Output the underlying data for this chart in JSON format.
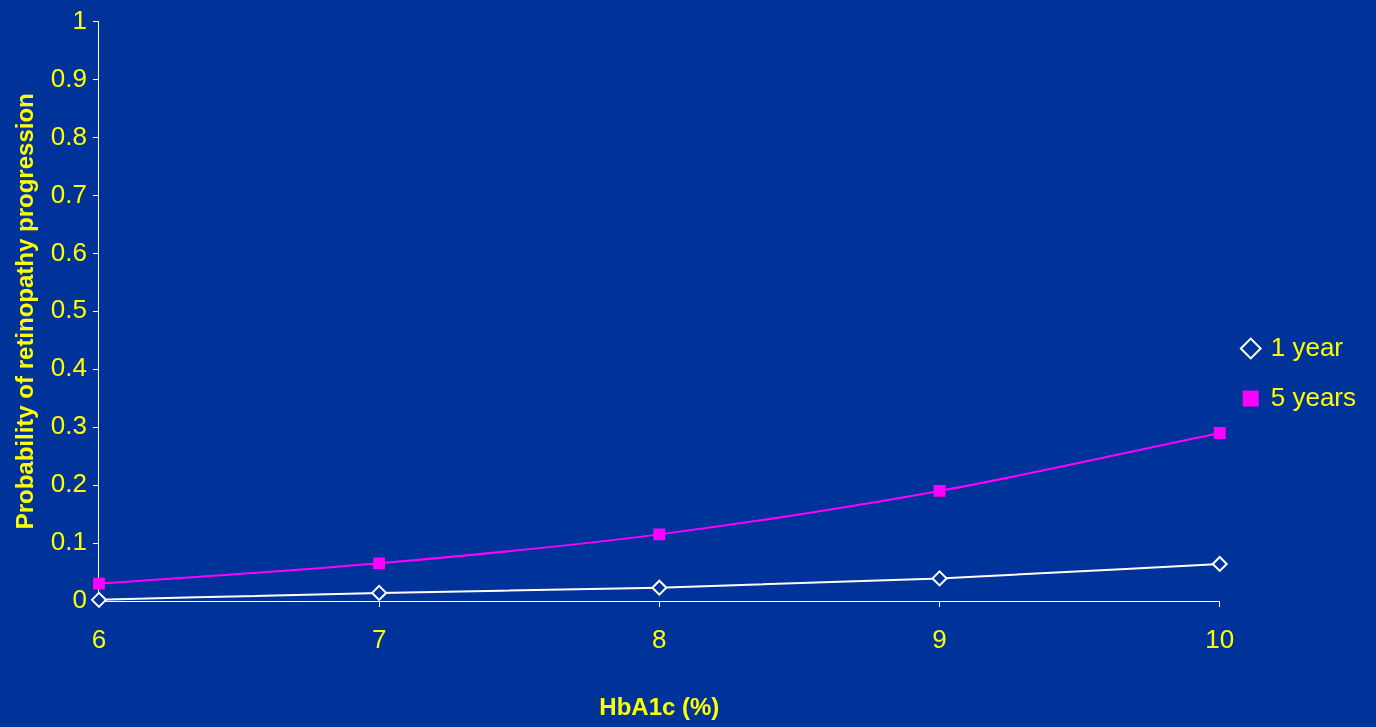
{
  "chart_data": {
    "type": "line",
    "xlabel": "HbA1c (%)",
    "ylabel": "Probability of retinopathy progression",
    "x": [
      6,
      7,
      8,
      9,
      10
    ],
    "xlim": [
      6,
      10
    ],
    "xticks": [
      6,
      7,
      8,
      9,
      10
    ],
    "ylim": [
      0,
      1
    ],
    "yticks": [
      0,
      0.1,
      0.2,
      0.3,
      0.4,
      0.5,
      0.6,
      0.7,
      0.8,
      0.9,
      1
    ],
    "grid": false,
    "legend": "right",
    "series": [
      {
        "name": "1 year",
        "color": "#ffffff",
        "marker": "diamond",
        "values": [
          0.002,
          0.014,
          0.023,
          0.039,
          0.064
        ]
      },
      {
        "name": "5 years",
        "color": "#ff00ff",
        "marker": "square",
        "values": [
          0.03,
          0.065,
          0.115,
          0.19,
          0.29
        ]
      }
    ]
  }
}
